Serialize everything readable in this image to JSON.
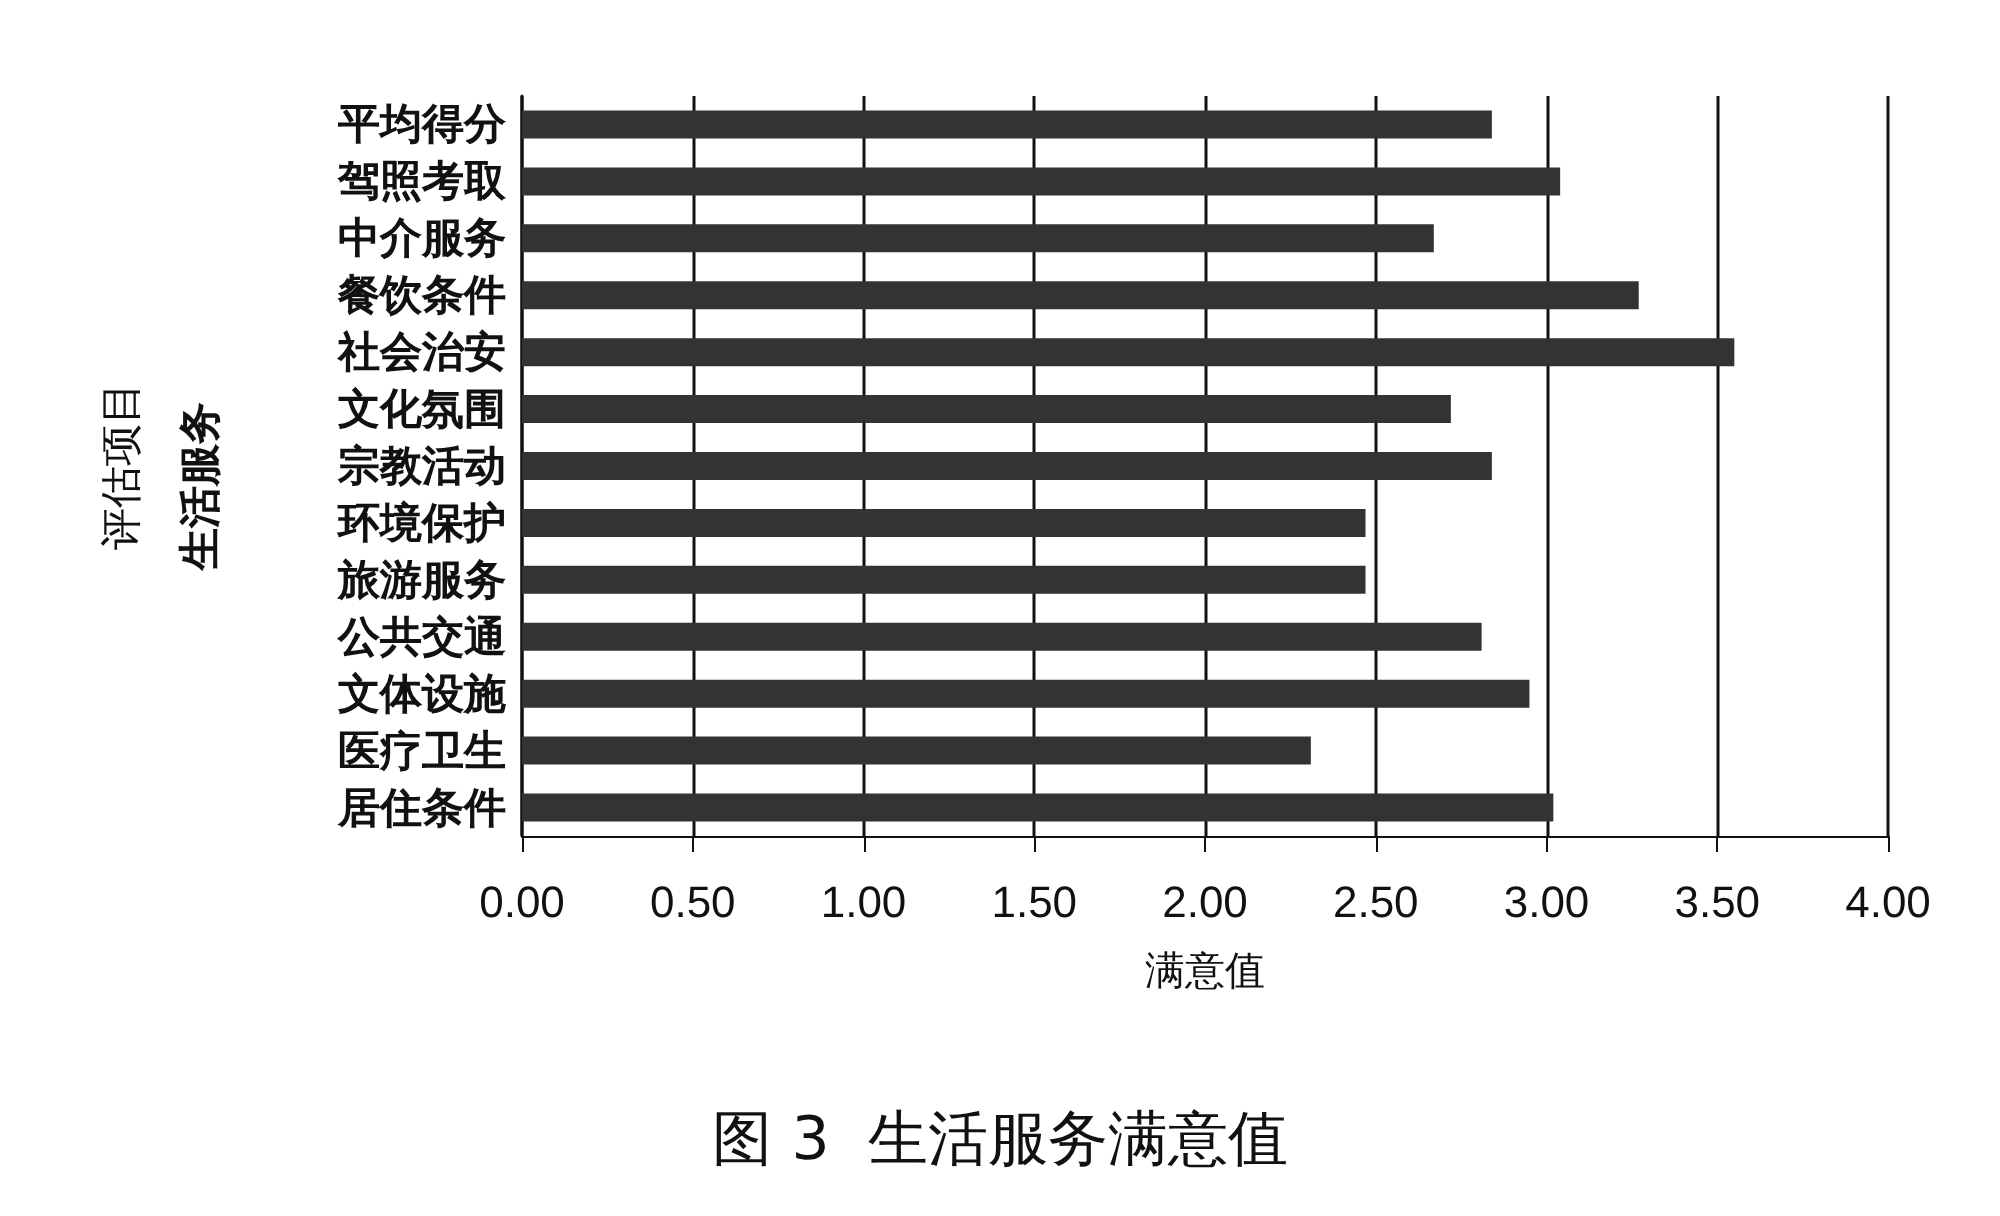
{
  "chart_data": {
    "type": "bar",
    "orientation": "horizontal",
    "title": "图 3  生活服务满意值",
    "xlabel": "满意值",
    "ylabel": "评估项目",
    "annotations": [
      "生活服务"
    ],
    "categories": [
      "平均得分",
      "驾照考取",
      "中介服务",
      "餐饮条件",
      "社会治安",
      "文化氛围",
      "宗教活动",
      "环境保护",
      "旅游服务",
      "公共交通",
      "文体设施",
      "医疗卫生",
      "居住条件"
    ],
    "values": [
      2.84,
      3.04,
      2.67,
      3.27,
      3.55,
      2.72,
      2.84,
      2.47,
      2.47,
      2.81,
      2.95,
      2.31,
      3.02
    ],
    "color": "#333333",
    "xlim": [
      0,
      4
    ],
    "xticks": [
      {
        "value": 0,
        "label": "0.00"
      },
      {
        "value": 0.5,
        "label": "0.50"
      },
      {
        "value": 1,
        "label": "1.00"
      },
      {
        "value": 1.5,
        "label": "1.50"
      },
      {
        "value": 2,
        "label": "2.00"
      },
      {
        "value": 2.5,
        "label": "2.50"
      },
      {
        "value": 3,
        "label": "3.00"
      },
      {
        "value": 3.5,
        "label": "3.50"
      },
      {
        "value": 4,
        "label": "4.00"
      }
    ],
    "grid": "x"
  }
}
